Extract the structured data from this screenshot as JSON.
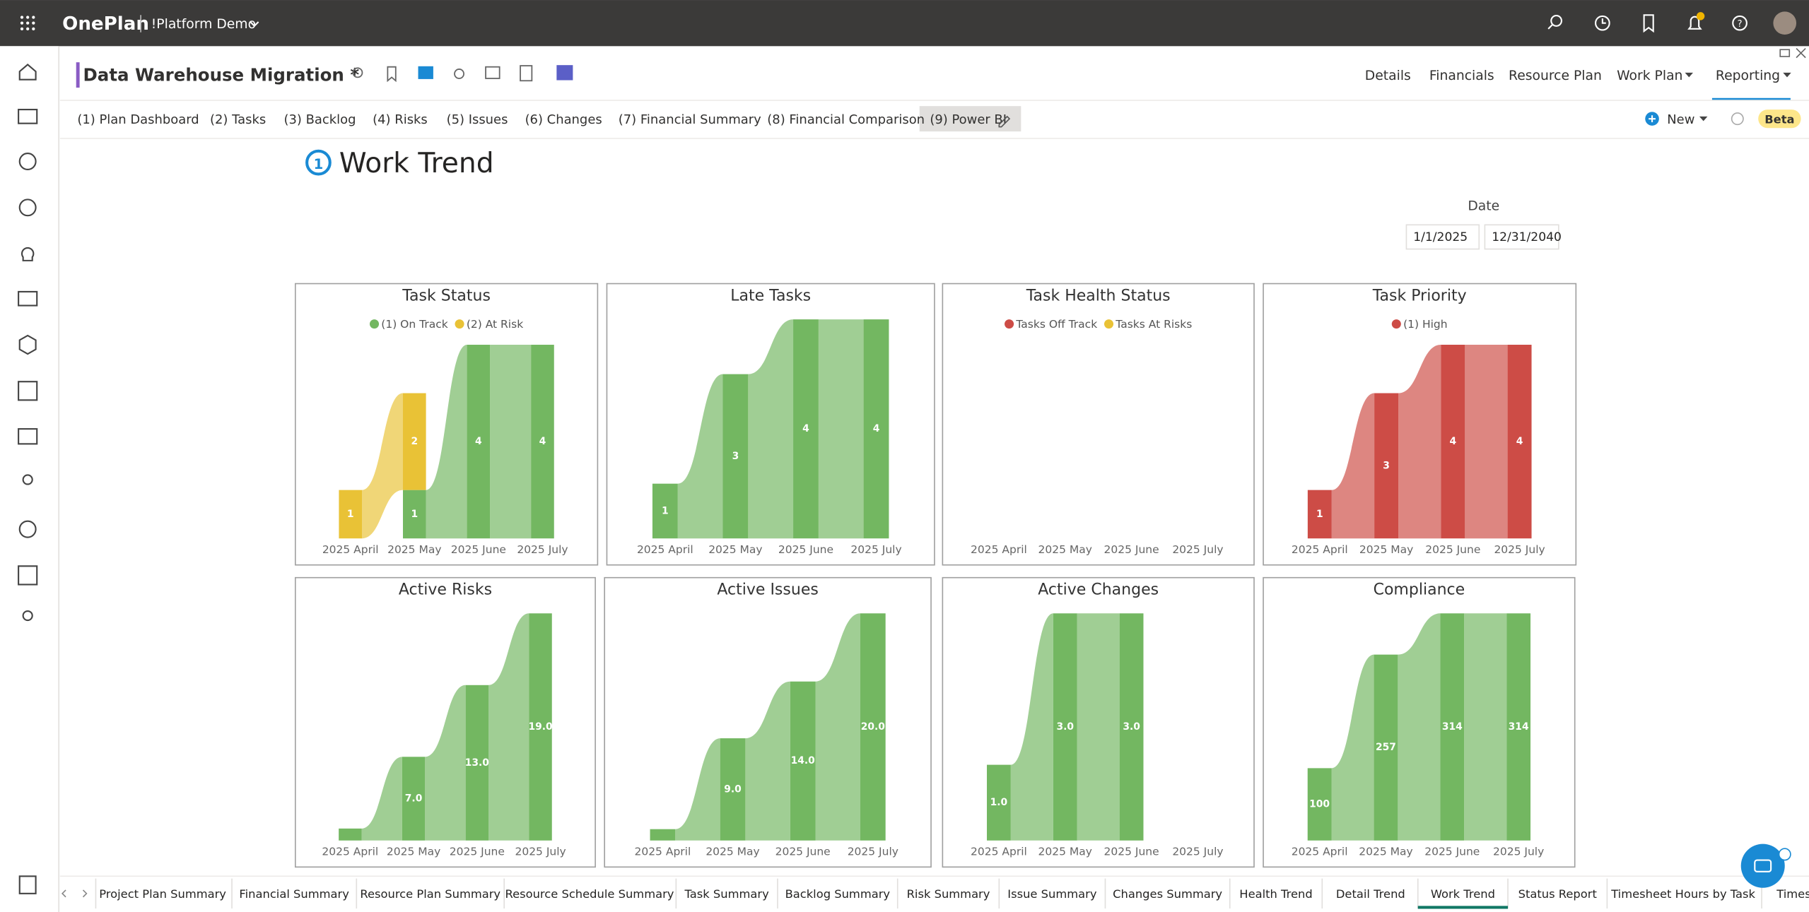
{
  "app": {
    "brand": "OnePlan",
    "workspace": "!Platform Demo"
  },
  "project": {
    "title": "Data Warehouse Migration *",
    "nav": [
      "Details",
      "Financials",
      "Resource Plan",
      "Work Plan",
      "Reporting"
    ]
  },
  "report_tabs": [
    "(1) Plan Dashboard",
    "(2) Tasks",
    "(3) Backlog",
    "(4) Risks",
    "(5) Issues",
    "(6) Changes",
    "(7) Financial Summary",
    "(8) Financial Comparison",
    "(9) Power BI"
  ],
  "toolbar": {
    "new": "New",
    "badge": "Beta"
  },
  "report": {
    "title": "Work Trend",
    "date_label": "Date",
    "date_from": "1/1/2025",
    "date_to": "12/31/2040"
  },
  "charts": [
    {
      "type": "ribbon",
      "title": "Task Status",
      "categories": [
        "2025 April",
        "2025 May",
        "2025 June",
        "2025 July"
      ],
      "series": [
        {
          "name": "(1) On Track",
          "color": "#73b761",
          "values": [
            null,
            1,
            4,
            4
          ]
        },
        {
          "name": "(2) At Risk",
          "color": "#e9c236",
          "values": [
            1,
            2,
            null,
            null
          ]
        }
      ]
    },
    {
      "type": "ribbon",
      "title": "Late Tasks",
      "categories": [
        "2025 April",
        "2025 May",
        "2025 June",
        "2025 July"
      ],
      "series": [
        {
          "color": "#73b761",
          "values": [
            1,
            3,
            4,
            4
          ]
        }
      ]
    },
    {
      "type": "ribbon",
      "title": "Task Health Status",
      "categories": [
        "2025 April",
        "2025 May",
        "2025 June",
        "2025 July"
      ],
      "series": [
        {
          "name": "Tasks Off Track",
          "color": "#cd4c46",
          "values": [
            null,
            null,
            null,
            null
          ]
        },
        {
          "name": "Tasks At Risks",
          "color": "#e9c236",
          "values": [
            null,
            null,
            null,
            null
          ]
        }
      ]
    },
    {
      "type": "ribbon",
      "title": "Task Priority",
      "categories": [
        "2025 April",
        "2025 May",
        "2025 June",
        "2025 July"
      ],
      "series": [
        {
          "name": "(1) High",
          "color": "#cd4c46",
          "values": [
            1,
            3,
            4,
            4
          ]
        }
      ]
    },
    {
      "type": "ribbon",
      "title": "Active Risks",
      "categories": [
        "2025 April",
        "2025 May",
        "2025 June",
        "2025 July"
      ],
      "series": [
        {
          "color": "#73b761",
          "values": [
            1,
            7,
            13,
            19
          ],
          "value_labels": [
            null,
            "7.0",
            "13.0",
            "19.0"
          ]
        }
      ]
    },
    {
      "type": "ribbon",
      "title": "Active Issues",
      "categories": [
        "2025 April",
        "2025 May",
        "2025 June",
        "2025 July"
      ],
      "series": [
        {
          "color": "#73b761",
          "values": [
            1,
            9,
            14,
            20
          ],
          "value_labels": [
            null,
            "9.0",
            "14.0",
            "20.0"
          ]
        }
      ]
    },
    {
      "type": "ribbon",
      "title": "Active Changes",
      "categories": [
        "2025 April",
        "2025 May",
        "2025 June",
        "2025 July"
      ],
      "series": [
        {
          "color": "#73b761",
          "values": [
            1,
            3,
            3,
            null
          ],
          "value_labels": [
            "1.0",
            "3.0",
            "3.0",
            null
          ]
        }
      ]
    },
    {
      "type": "ribbon",
      "title": "Compliance",
      "categories": [
        "2025 April",
        "2025 May",
        "2025 June",
        "2025 July"
      ],
      "series": [
        {
          "color": "#73b761",
          "values": [
            100,
            257,
            314,
            314
          ]
        }
      ]
    }
  ],
  "bottom_tabs": [
    "Project Plan Summary",
    "Financial Summary",
    "Resource Plan Summary",
    "Resource Schedule Summary",
    "Task Summary",
    "Backlog Summary",
    "Risk Summary",
    "Issue Summary",
    "Changes Summary",
    "Health Trend",
    "Detail Trend",
    "Work Trend",
    "Status Report",
    "Timesheet Hours by Task",
    "Timesh"
  ]
}
